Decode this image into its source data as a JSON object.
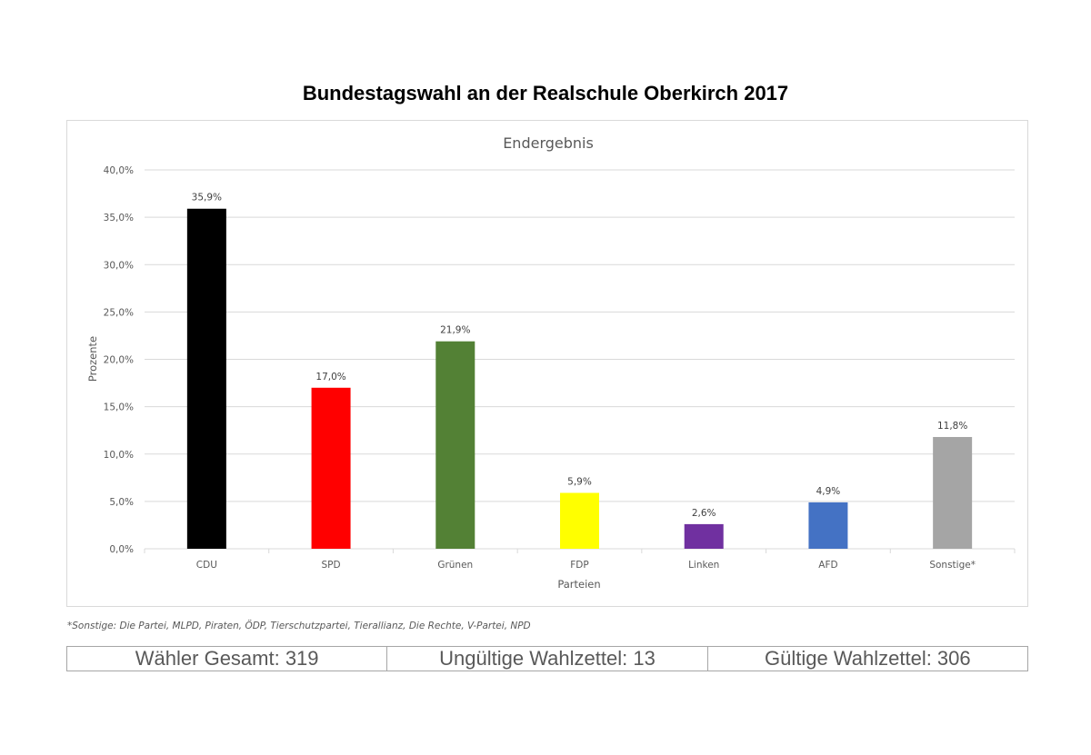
{
  "page": {
    "title": "Bundestagswahl an der Realschule Oberkirch 2017"
  },
  "chart_data": {
    "type": "bar",
    "title": "Endergebnis",
    "xlabel": "Parteien",
    "ylabel": "Prozente",
    "ylim": [
      0,
      40
    ],
    "yticks": [
      "0,0%",
      "5,0%",
      "10,0%",
      "15,0%",
      "20,0%",
      "25,0%",
      "30,0%",
      "35,0%",
      "40,0%"
    ],
    "grid": true,
    "categories": [
      "CDU",
      "SPD",
      "Grünen",
      "FDP",
      "Linken",
      "AFD",
      "Sonstige*"
    ],
    "values": [
      35.9,
      17.0,
      21.9,
      5.9,
      2.6,
      4.9,
      11.8
    ],
    "data_labels": [
      "35,9%",
      "17,0%",
      "21,9%",
      "5,9%",
      "2,6%",
      "4,9%",
      "11,8%"
    ],
    "colors": [
      "#000000",
      "#ff0000",
      "#538135",
      "#ffff00",
      "#7030a0",
      "#4472c4",
      "#a5a5a5"
    ],
    "axis_text_color": "#595959",
    "grid_color": "#d9d9d9"
  },
  "footnote": "*Sonstige: Die Partei, MLPD, Piraten, ÖDP, Tierschutzpartei, Tierallianz, Die Rechte, V-Partei, NPD",
  "stats": [
    {
      "text": "Wähler Gesamt: 319"
    },
    {
      "text": "Ungültige Wahlzettel: 13"
    },
    {
      "text": "Gültige Wahlzettel: 306"
    }
  ]
}
